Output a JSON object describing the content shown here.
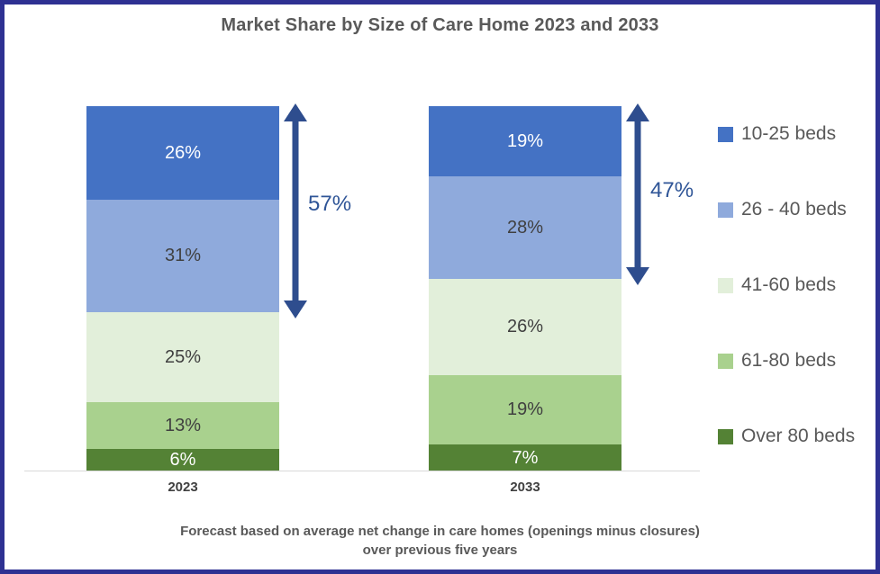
{
  "title": "Market Share by Size of Care Home 2023 and 2033",
  "footnote": {
    "line1": "Forecast based on average net change in care homes (openings minus closures)",
    "line2": "over previous five years"
  },
  "colors": {
    "frame_border": "#2E3192",
    "background": "#FFFFFF",
    "title_text": "#595959",
    "axis_line": "#D9D9D9",
    "category_label": "#404040",
    "arrow": "#2E4D8E",
    "arrow_label": "#2F5597",
    "legend_text": "#595959"
  },
  "chart_data": {
    "type": "bar",
    "stacked": true,
    "title": "Market Share by Size of Care Home 2023 and 2033",
    "categories": [
      "2023",
      "2033"
    ],
    "series": [
      {
        "name": "10-25 beds",
        "values": [
          26,
          19
        ],
        "color": "#4472C4",
        "label_color": "#FFFFFF"
      },
      {
        "name": "26 - 40 beds",
        "values": [
          31,
          28
        ],
        "color": "#8FAADC",
        "label_color": "#404040"
      },
      {
        "name": "41-60 beds",
        "values": [
          25,
          26
        ],
        "color": "#E2EFDA",
        "label_color": "#404040"
      },
      {
        "name": "61-80 beds",
        "values": [
          13,
          19
        ],
        "color": "#A9D18E",
        "label_color": "#404040"
      },
      {
        "name": "Over 80 beds",
        "values": [
          6,
          7
        ],
        "color": "#548235",
        "label_color": "#FFFFFF"
      }
    ],
    "data_label_format": "{value}%",
    "annotations": [
      {
        "category": "2023",
        "label": "57%",
        "spans_series": [
          "10-25 beds",
          "26 - 40 beds"
        ],
        "total": 57
      },
      {
        "category": "2033",
        "label": "47%",
        "spans_series": [
          "10-25 beds",
          "26 - 40 beds"
        ],
        "total": 47
      }
    ],
    "legend_position": "right",
    "grid": false,
    "xlabel": "",
    "ylabel": "",
    "ylim": [
      0,
      100
    ]
  },
  "legend": {
    "items": [
      {
        "label": "10-25 beds",
        "color": "#4472C4"
      },
      {
        "label": "26 - 40 beds",
        "color": "#8FAADC"
      },
      {
        "label": "41-60 beds",
        "color": "#E2EFDA"
      },
      {
        "label": "61-80 beds",
        "color": "#A9D18E"
      },
      {
        "label": "Over 80 beds",
        "color": "#548235"
      }
    ]
  }
}
